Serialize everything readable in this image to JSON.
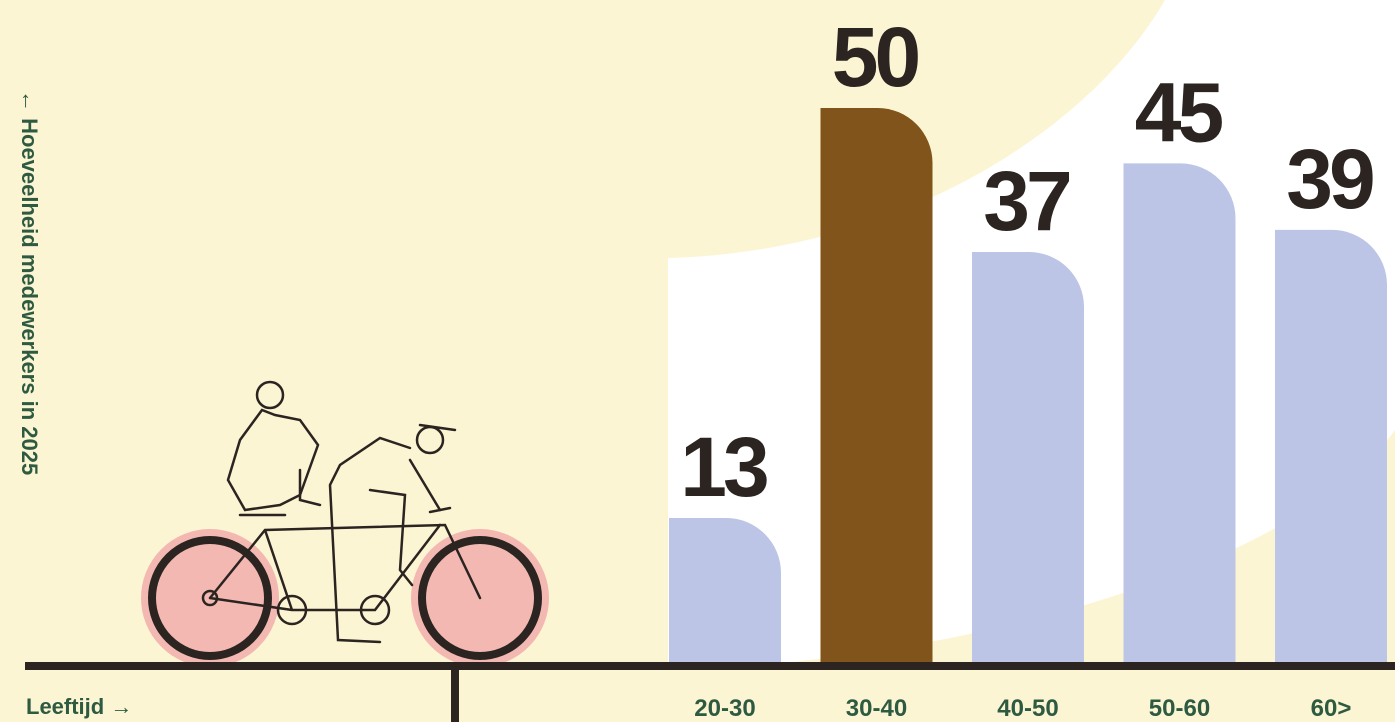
{
  "chart_data": {
    "type": "bar",
    "y_label": "← Hoeveelheid medewerkers in 2025",
    "x_label": "Leeftijd →",
    "categories": [
      "20-30",
      "30-40",
      "40-50",
      "50-60",
      "60>"
    ],
    "values": [
      13,
      50,
      37,
      45,
      39
    ],
    "colors": [
      "#bcc5e6",
      "#80541a",
      "#bcc5e6",
      "#bcc5e6",
      "#bcc5e6"
    ],
    "ylim": [
      0,
      50
    ]
  }
}
